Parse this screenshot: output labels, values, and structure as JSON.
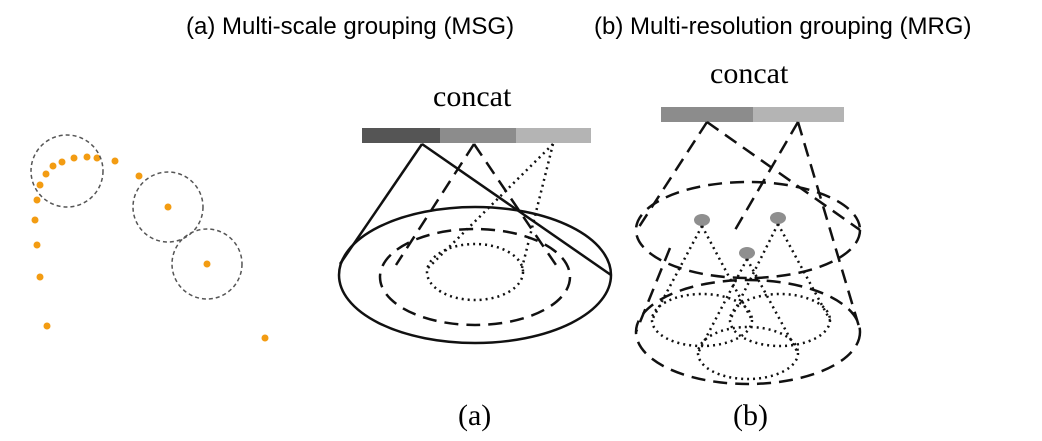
{
  "titles": {
    "msg": "(a) Multi-scale grouping (MSG)",
    "mrg": "(b) Multi-resolution grouping (MRG)"
  },
  "panel_a": {
    "concat_label": "concat",
    "caption": "(a)"
  },
  "panel_b": {
    "concat_label": "concat",
    "caption": "(b)"
  },
  "colors": {
    "point": "#f39c12",
    "circle": "#555555",
    "bar_dark": "#555555",
    "bar_mid": "#8c8c8c",
    "bar_light": "#b4b4b4",
    "centroid": "#8f8f8f",
    "line": "#111111"
  }
}
